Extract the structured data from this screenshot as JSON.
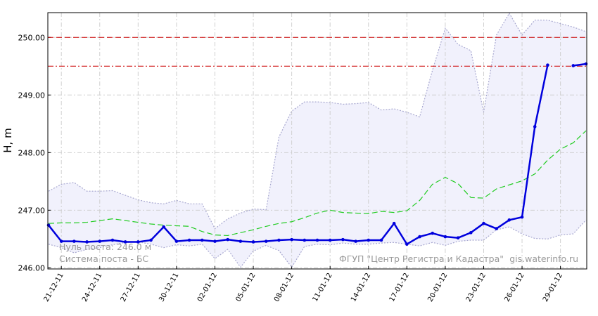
{
  "chart_data": {
    "type": "line",
    "y_label": "H, m",
    "x": [
      null,
      "21-12-11",
      null,
      null,
      "24-12-11",
      null,
      null,
      "27-12-11",
      null,
      null,
      "30-12-11",
      null,
      null,
      "02-01-12",
      null,
      null,
      "05-01-12",
      null,
      null,
      "08-01-12",
      null,
      null,
      "11-01-12",
      null,
      null,
      "14-01-12",
      null,
      null,
      "17-01-12",
      null,
      null,
      "20-01-12",
      null,
      null,
      "23-01-12",
      null,
      null,
      "26-01-12",
      null,
      null,
      "29-01-12",
      null,
      null
    ],
    "ylim": [
      245.98,
      250.43
    ],
    "yticks": [
      {
        "value": 246,
        "label": "246.00"
      },
      {
        "value": 247,
        "label": "247.00"
      },
      {
        "value": 248,
        "label": "248.00"
      },
      {
        "value": 249,
        "label": "249.00"
      },
      {
        "value": 250,
        "label": "250.00"
      }
    ],
    "grid": true,
    "band": {
      "edge_color": "#a8a8d0",
      "fill": "#f1f1fc",
      "upper": [
        247.33,
        247.45,
        247.48,
        247.33,
        247.33,
        247.34,
        247.26,
        247.18,
        247.13,
        247.11,
        247.17,
        247.11,
        247.11,
        246.68,
        246.85,
        246.95,
        247.02,
        247.01,
        248.27,
        248.72,
        248.88,
        248.88,
        248.87,
        248.84,
        248.85,
        248.87,
        248.74,
        248.76,
        248.7,
        248.62,
        249.43,
        250.16,
        249.88,
        249.77,
        248.7,
        250.04,
        250.42,
        250.04,
        250.3,
        250.3,
        250.24,
        250.18,
        250.1
      ],
      "lower": [
        246.41,
        246.35,
        246.26,
        246.32,
        246.35,
        246.4,
        246.44,
        246.45,
        246.41,
        246.35,
        246.4,
        246.38,
        246.41,
        246.16,
        246.32,
        246.01,
        246.29,
        246.39,
        246.3,
        246.01,
        246.37,
        246.41,
        246.4,
        246.43,
        246.41,
        246.41,
        246.43,
        246.44,
        246.41,
        246.38,
        246.44,
        246.39,
        246.46,
        246.48,
        246.48,
        246.66,
        246.71,
        246.59,
        246.51,
        246.5,
        246.57,
        246.59,
        246.83
      ]
    },
    "series": [
      {
        "color": "#22cc22",
        "dash": "dashed",
        "values": [
          246.77,
          246.78,
          246.78,
          246.79,
          246.82,
          246.85,
          246.82,
          246.79,
          246.76,
          246.74,
          246.73,
          246.72,
          246.63,
          246.57,
          246.56,
          246.61,
          246.66,
          246.72,
          246.77,
          246.8,
          246.87,
          246.95,
          247.0,
          246.96,
          246.95,
          246.94,
          246.98,
          246.96,
          246.99,
          247.17,
          247.45,
          247.57,
          247.46,
          247.22,
          247.21,
          247.37,
          247.44,
          247.51,
          247.63,
          247.87,
          248.06,
          248.17,
          248.38
        ]
      },
      {
        "color": "#0000dd",
        "markers": true,
        "values": [
          246.74,
          246.46,
          246.46,
          246.45,
          246.46,
          246.48,
          246.45,
          246.45,
          246.48,
          246.71,
          246.46,
          246.48,
          246.48,
          246.46,
          246.49,
          246.46,
          246.45,
          246.46,
          246.48,
          246.49,
          246.48,
          246.48,
          246.48,
          246.49,
          246.46,
          246.48,
          246.48,
          246.77,
          246.41,
          246.54,
          246.6,
          246.54,
          246.52,
          246.61,
          246.77,
          246.68,
          246.83,
          246.88,
          248.45,
          249.52,
          null,
          249.51,
          249.54
        ]
      }
    ],
    "hlines": [
      {
        "value": 250,
        "color": "#cc0000",
        "dash": "dashed"
      },
      {
        "value": 249.5,
        "color": "#cc0000",
        "dash": "dashdot"
      }
    ],
    "annotations": [
      "Нуль поста: 246.0 м",
      "Система поста - БС",
      "ФГУП \"Центр Регистра и Кадастра\"",
      "gis.waterinfo.ru"
    ]
  }
}
